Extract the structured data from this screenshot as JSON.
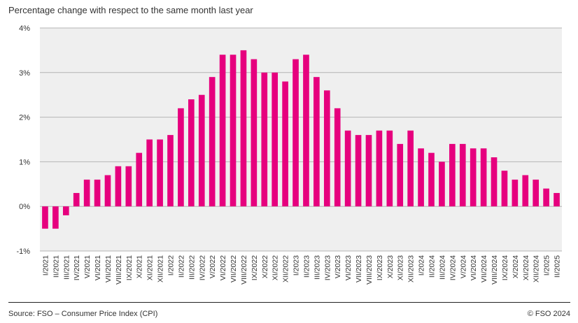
{
  "subtitle": "Percentage change with respect to the same month last year",
  "footer": {
    "source": "Source: FSO – Consumer Price Index (CPI)",
    "copyright": "© FSO 2024"
  },
  "colors": {
    "bar": "#e6007e",
    "plot_bg": "#efefef",
    "grid": "#b4b4b4",
    "axis_text": "#333333"
  },
  "chart_data": {
    "type": "bar",
    "ylim": [
      -1,
      4
    ],
    "yticks": [
      -1,
      0,
      1,
      2,
      3,
      4
    ],
    "ytick_labels": [
      "-1%",
      "0%",
      "1%",
      "2%",
      "3%",
      "4%"
    ],
    "grid": true,
    "categories": [
      "I/2021",
      "II/2021",
      "III/2021",
      "IV/2021",
      "V/2021",
      "VI/2021",
      "VII/2021",
      "VIII/2021",
      "IX/2021",
      "X/2021",
      "XI/2021",
      "XII/2021",
      "I/2022",
      "II/2022",
      "III/2022",
      "IV/2022",
      "V/2022",
      "VI/2022",
      "VII/2022",
      "VIII/2022",
      "IX/2022",
      "X/2022",
      "XI/2022",
      "XII/2022",
      "I/2023",
      "II/2023",
      "III/2023",
      "IV/2023",
      "V/2023",
      "VI/2023",
      "VII/2023",
      "VIII/2023",
      "IX/2023",
      "X/2023",
      "XI/2023",
      "XII/2023",
      "I/2024",
      "II/2024",
      "III/2024",
      "IV/2024",
      "V/2024",
      "VI/2024",
      "VII/2024",
      "VIII/2024",
      "IX/2024",
      "X/2024",
      "XI/2024",
      "XII/2024",
      "I/2025",
      "II/2025"
    ],
    "values": [
      -0.5,
      -0.5,
      -0.2,
      0.3,
      0.6,
      0.6,
      0.7,
      0.9,
      0.9,
      1.2,
      1.5,
      1.5,
      1.6,
      2.2,
      2.4,
      2.5,
      2.9,
      3.4,
      3.4,
      3.5,
      3.3,
      3.0,
      3.0,
      2.8,
      3.3,
      3.4,
      2.9,
      2.6,
      2.2,
      1.7,
      1.6,
      1.6,
      1.7,
      1.7,
      1.4,
      1.7,
      1.3,
      1.2,
      1.0,
      1.4,
      1.4,
      1.3,
      1.3,
      1.1,
      0.8,
      0.6,
      0.7,
      0.6,
      0.4,
      0.3
    ]
  }
}
